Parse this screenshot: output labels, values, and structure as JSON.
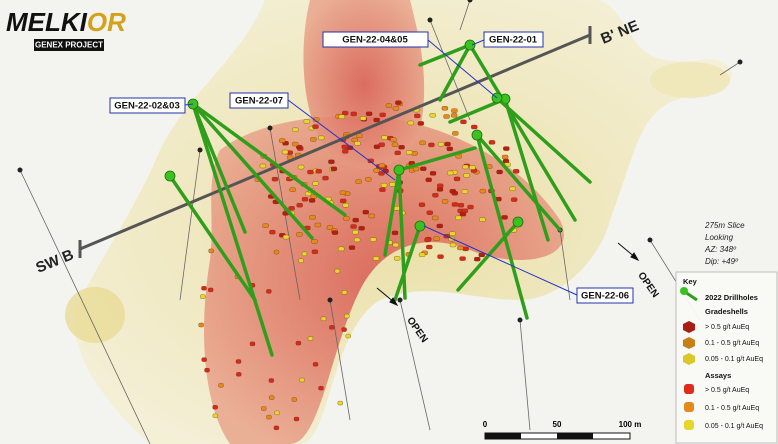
{
  "logo": {
    "name_main": "MELKI",
    "name_accent": "OR",
    "project": "GENEX PROJECT"
  },
  "section_line": {
    "left": "SW B",
    "right": "B' NE"
  },
  "drillhole_labels": [
    "GEN-22-04&05",
    "GEN-22-01",
    "GEN-22-02&03",
    "GEN-22-07",
    "GEN-22-06"
  ],
  "open_labels": [
    "OPEN",
    "OPEN"
  ],
  "view": [
    "275m Slice",
    "Looking",
    "AZ: 348º",
    "Dip: +49º"
  ],
  "legend": {
    "title": "Key",
    "drillholes": "2022 Drillholes",
    "gradeshells": {
      "title": "Gradeshells",
      "items": [
        "> 0.5 g/t AuEq",
        "0.1 - 0.5 g/t AuEq",
        "0.05 - 0.1 g/t AuEq"
      ]
    },
    "assays": {
      "title": "Assays",
      "items": [
        "> 0.5 g/t AuEq",
        "0.1 - 0.5 g/t AuEq",
        "0.05 - 0.1 g/t AuEq"
      ]
    }
  },
  "scale_bar": {
    "ticks": [
      "0",
      "50",
      "100 m"
    ]
  }
}
